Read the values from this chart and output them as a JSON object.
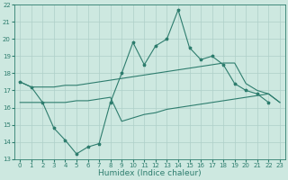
{
  "x": [
    0,
    1,
    2,
    3,
    4,
    5,
    6,
    7,
    8,
    9,
    10,
    11,
    12,
    13,
    14,
    15,
    16,
    17,
    18,
    19,
    20,
    21,
    22,
    23
  ],
  "line_main": [
    17.5,
    17.2,
    16.3,
    14.8,
    14.1,
    13.3,
    13.7,
    13.9,
    16.3,
    18.0,
    19.8,
    18.5,
    19.6,
    20.0,
    21.7,
    19.5,
    18.8,
    19.0,
    18.5,
    17.4,
    17.0,
    16.8,
    16.3,
    null
  ],
  "line_upper": [
    17.5,
    17.2,
    17.2,
    17.2,
    17.3,
    17.3,
    17.4,
    17.5,
    17.6,
    17.7,
    17.8,
    17.9,
    18.0,
    18.1,
    18.2,
    18.3,
    18.4,
    18.5,
    18.6,
    18.6,
    17.4,
    17.0,
    16.8,
    16.3
  ],
  "line_lower": [
    16.3,
    16.3,
    16.3,
    16.3,
    16.3,
    16.4,
    16.4,
    16.5,
    16.6,
    15.2,
    15.4,
    15.6,
    15.7,
    15.9,
    16.0,
    16.1,
    16.2,
    16.3,
    16.4,
    16.5,
    16.6,
    16.7,
    16.8,
    16.3
  ],
  "line_color": "#2e7d6e",
  "bg_color": "#cde8e0",
  "grid_color": "#aecfc8",
  "ylim": [
    13,
    22
  ],
  "xlim": [
    -0.5,
    23.5
  ],
  "yticks": [
    13,
    14,
    15,
    16,
    17,
    18,
    19,
    20,
    21,
    22
  ],
  "xticks": [
    0,
    1,
    2,
    3,
    4,
    5,
    6,
    7,
    8,
    9,
    10,
    11,
    12,
    13,
    14,
    15,
    16,
    17,
    18,
    19,
    20,
    21,
    22,
    23
  ],
  "xlabel": "Humidex (Indice chaleur)",
  "xlabel_fontsize": 6.5,
  "tick_fontsize": 5,
  "linewidth": 0.8,
  "marker_size": 2.5
}
